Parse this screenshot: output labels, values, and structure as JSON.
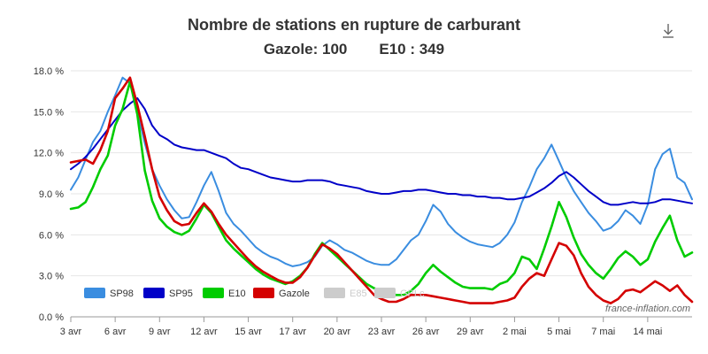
{
  "header": {
    "title": "Nombre de stations en rupture de carburant",
    "gazole_text": "Gazole: 100",
    "e10_text": "E10 : 349",
    "download_icon": "download-icon"
  },
  "credit": "france-inflation.com",
  "colors": {
    "SP98": "#3a8de0",
    "SP95": "#0000c8",
    "E10": "#00cc00",
    "Gazole": "#d40000",
    "E85": "#cccccc",
    "GPLc": "#cccccc"
  },
  "chart_data": {
    "type": "line",
    "title": "Nombre de stations en rupture de carburant",
    "subtitle": "Gazole: 100 E10 : 349",
    "xlabel": "",
    "ylabel": "",
    "ylim": [
      0,
      18
    ],
    "ytick_labels": [
      "0.0 %",
      "3.0 %",
      "6.0 %",
      "9.0 %",
      "12.0 %",
      "15.0 %",
      "18.0 %"
    ],
    "ytick_values": [
      0,
      3,
      6,
      9,
      12,
      15,
      18
    ],
    "xlim": [
      3,
      45
    ],
    "xtick_labels": [
      "3 avr",
      "6 avr",
      "9 avr",
      "12 avr",
      "15 avr",
      "17 avr",
      "20 avr",
      "23 avr",
      "26 avr",
      "29 avr",
      "2 mai",
      "5 mai",
      "7 mai",
      "14 mai"
    ],
    "xtick_values": [
      3,
      6,
      9,
      12,
      15,
      18,
      21,
      24,
      27,
      30,
      33,
      36,
      39,
      42
    ],
    "x_unit": "days from 1 April",
    "grid": true,
    "legend_position": "bottom-left",
    "legend": [
      "SP98",
      "SP95",
      "E10",
      "Gazole",
      "E85",
      "GPLc"
    ],
    "series": [
      {
        "name": "SP98",
        "visible": true,
        "x": [
          3,
          3.5,
          4,
          4.5,
          5,
          5.5,
          6,
          6.5,
          7,
          7.5,
          8,
          8.5,
          9,
          9.5,
          10,
          10.5,
          11,
          11.5,
          12,
          12.5,
          13,
          13.5,
          14,
          14.5,
          15,
          15.5,
          16,
          16.5,
          17,
          17.5,
          18,
          18.5,
          19,
          19.5,
          20,
          20.5,
          21,
          21.5,
          22,
          22.5,
          23,
          23.5,
          24,
          24.5,
          25,
          25.5,
          26,
          26.5,
          27,
          27.5,
          28,
          28.5,
          29,
          29.5,
          30,
          30.5,
          31,
          31.5,
          32,
          32.5,
          33,
          33.5,
          34,
          34.5,
          35,
          35.5,
          36,
          36.5,
          37,
          37.5,
          38,
          38.5,
          39,
          39.5,
          40,
          40.5,
          41,
          41.5,
          42,
          42.5,
          43,
          43.5,
          44,
          44.5,
          45
        ],
        "values": [
          9.3,
          10.2,
          11.5,
          12.8,
          13.6,
          15.0,
          16.2,
          17.5,
          17.1,
          15.0,
          12.7,
          10.8,
          9.6,
          8.6,
          7.8,
          7.2,
          7.3,
          8.4,
          9.6,
          10.6,
          9.2,
          7.6,
          6.8,
          6.3,
          5.7,
          5.1,
          4.7,
          4.4,
          4.2,
          3.9,
          3.7,
          3.8,
          4.0,
          4.4,
          5.2,
          5.6,
          5.3,
          4.9,
          4.7,
          4.4,
          4.1,
          3.9,
          3.8,
          3.8,
          4.2,
          4.9,
          5.6,
          6.0,
          7.0,
          8.2,
          7.7,
          6.8,
          6.2,
          5.8,
          5.5,
          5.3,
          5.2,
          5.1,
          5.4,
          6.0,
          6.9,
          8.4,
          9.5,
          10.8,
          11.6,
          12.6,
          11.4,
          10.2,
          9.2,
          8.4,
          7.6,
          7.0,
          6.3,
          6.5,
          7.0,
          7.8,
          7.4,
          6.8,
          8.2,
          10.8,
          11.9,
          12.3,
          10.2,
          9.8,
          8.6
        ]
      },
      {
        "name": "SP95",
        "visible": true,
        "x": [
          3,
          3.5,
          4,
          4.5,
          5,
          5.5,
          6,
          6.5,
          7,
          7.5,
          8,
          8.5,
          9,
          9.5,
          10,
          10.5,
          11,
          11.5,
          12,
          12.5,
          13,
          13.5,
          14,
          14.5,
          15,
          15.5,
          16,
          16.5,
          17,
          17.5,
          18,
          18.5,
          19,
          19.5,
          20,
          20.5,
          21,
          21.5,
          22,
          22.5,
          23,
          23.5,
          24,
          24.5,
          25,
          25.5,
          26,
          26.5,
          27,
          27.5,
          28,
          28.5,
          29,
          29.5,
          30,
          30.5,
          31,
          31.5,
          32,
          32.5,
          33,
          33.5,
          34,
          34.5,
          35,
          35.5,
          36,
          36.5,
          37,
          37.5,
          38,
          38.5,
          39,
          39.5,
          40,
          40.5,
          41,
          41.5,
          42,
          42.5,
          43,
          43.5,
          44,
          44.5,
          45
        ],
        "values": [
          10.8,
          11.2,
          11.7,
          12.3,
          13.0,
          13.7,
          14.4,
          15.1,
          15.6,
          16.0,
          15.2,
          14.0,
          13.3,
          13.0,
          12.6,
          12.4,
          12.3,
          12.2,
          12.2,
          12.0,
          11.8,
          11.6,
          11.2,
          10.9,
          10.8,
          10.6,
          10.4,
          10.2,
          10.1,
          10.0,
          9.9,
          9.9,
          10.0,
          10.0,
          10.0,
          9.9,
          9.7,
          9.6,
          9.5,
          9.4,
          9.2,
          9.1,
          9.0,
          9.0,
          9.1,
          9.2,
          9.2,
          9.3,
          9.3,
          9.2,
          9.1,
          9.0,
          9.0,
          8.9,
          8.9,
          8.8,
          8.8,
          8.7,
          8.7,
          8.6,
          8.6,
          8.7,
          8.8,
          9.1,
          9.4,
          9.8,
          10.3,
          10.6,
          10.2,
          9.7,
          9.2,
          8.8,
          8.4,
          8.2,
          8.2,
          8.3,
          8.4,
          8.3,
          8.3,
          8.4,
          8.6,
          8.6,
          8.5,
          8.4,
          8.3
        ]
      },
      {
        "name": "E10",
        "visible": true,
        "x": [
          3,
          3.5,
          4,
          4.5,
          5,
          5.5,
          6,
          6.5,
          7,
          7.5,
          8,
          8.5,
          9,
          9.5,
          10,
          10.5,
          11,
          11.5,
          12,
          12.5,
          13,
          13.5,
          14,
          14.5,
          15,
          15.5,
          16,
          16.5,
          17,
          17.5,
          18,
          18.5,
          19,
          19.5,
          20,
          20.5,
          21,
          21.5,
          22,
          22.5,
          23,
          23.5,
          24,
          24.5,
          25,
          25.5,
          26,
          26.5,
          27,
          27.5,
          28,
          28.5,
          29,
          29.5,
          30,
          30.5,
          31,
          31.5,
          32,
          32.5,
          33,
          33.5,
          34,
          34.5,
          35,
          35.5,
          36,
          36.5,
          37,
          37.5,
          38,
          38.5,
          39,
          39.5,
          40,
          40.5,
          41,
          41.5,
          42,
          42.5,
          43,
          43.5,
          44,
          44.5,
          45
        ],
        "values": [
          7.9,
          8.0,
          8.4,
          9.5,
          10.8,
          11.8,
          14.0,
          15.2,
          17.2,
          14.8,
          10.7,
          8.5,
          7.2,
          6.6,
          6.2,
          6.0,
          6.3,
          7.2,
          8.2,
          7.6,
          6.6,
          5.6,
          5.0,
          4.5,
          4.0,
          3.5,
          3.1,
          2.8,
          2.6,
          2.4,
          2.6,
          3.0,
          3.6,
          4.6,
          5.4,
          4.9,
          4.4,
          3.9,
          3.4,
          2.9,
          2.4,
          2.1,
          1.9,
          1.7,
          1.6,
          1.6,
          1.9,
          2.4,
          3.2,
          3.8,
          3.3,
          2.9,
          2.5,
          2.2,
          2.1,
          2.1,
          2.1,
          2.0,
          2.4,
          2.6,
          3.2,
          4.4,
          4.2,
          3.5,
          5.0,
          6.6,
          8.4,
          7.3,
          5.8,
          4.6,
          3.8,
          3.2,
          2.8,
          3.5,
          4.3,
          4.8,
          4.4,
          3.8,
          4.2,
          5.5,
          6.5,
          7.4,
          5.6,
          4.4,
          4.7
        ]
      },
      {
        "name": "Gazole",
        "visible": true,
        "x": [
          3,
          3.5,
          4,
          4.5,
          5,
          5.5,
          6,
          6.5,
          7,
          7.5,
          8,
          8.5,
          9,
          9.5,
          10,
          10.5,
          11,
          11.5,
          12,
          12.5,
          13,
          13.5,
          14,
          14.5,
          15,
          15.5,
          16,
          16.5,
          17,
          17.5,
          18,
          18.5,
          19,
          19.5,
          20,
          20.5,
          21,
          21.5,
          22,
          22.5,
          23,
          23.5,
          24,
          24.5,
          25,
          25.5,
          26,
          26.5,
          27,
          27.5,
          28,
          28.5,
          29,
          29.5,
          30,
          30.5,
          31,
          31.5,
          32,
          32.5,
          33,
          33.5,
          34,
          34.5,
          35,
          35.5,
          36,
          36.5,
          37,
          37.5,
          38,
          38.5,
          39,
          39.5,
          40,
          40.5,
          41,
          41.5,
          42,
          42.5,
          43,
          43.5,
          44,
          44.5,
          45
        ],
        "values": [
          11.3,
          11.4,
          11.5,
          11.2,
          12.2,
          13.6,
          16.0,
          16.7,
          17.5,
          15.5,
          13.2,
          10.8,
          8.8,
          7.8,
          7.0,
          6.7,
          6.8,
          7.6,
          8.3,
          7.7,
          6.8,
          6.0,
          5.4,
          4.8,
          4.2,
          3.7,
          3.3,
          3.0,
          2.7,
          2.5,
          2.5,
          2.9,
          3.6,
          4.5,
          5.3,
          5.0,
          4.6,
          4.0,
          3.4,
          2.8,
          2.2,
          1.6,
          1.3,
          1.1,
          1.1,
          1.3,
          1.6,
          1.6,
          1.6,
          1.5,
          1.4,
          1.3,
          1.2,
          1.1,
          1.0,
          1.0,
          1.0,
          1.0,
          1.1,
          1.2,
          1.4,
          2.2,
          2.8,
          3.2,
          3.0,
          4.2,
          5.4,
          5.2,
          4.5,
          3.2,
          2.2,
          1.6,
          1.2,
          1.0,
          1.3,
          1.9,
          2.0,
          1.8,
          2.2,
          2.6,
          2.3,
          1.9,
          2.3,
          1.6,
          1.1
        ]
      },
      {
        "name": "E85",
        "visible": false,
        "x": [],
        "values": []
      },
      {
        "name": "GPLc",
        "visible": false,
        "x": [],
        "values": []
      }
    ]
  }
}
